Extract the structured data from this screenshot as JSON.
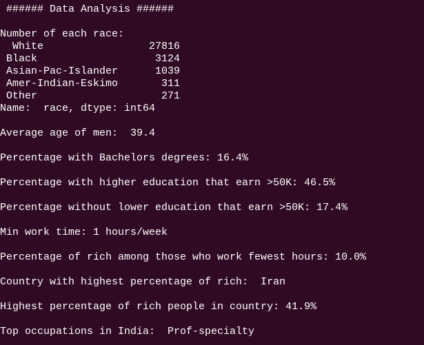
{
  "title": "###### Data Analysis ######",
  "race_heading": "Number of each race:",
  "races": [
    {
      "name": "White",
      "count": 27816
    },
    {
      "name": "Black",
      "count": 3124
    },
    {
      "name": "Asian-Pac-Islander",
      "count": 1039
    },
    {
      "name": "Amer-Indian-Eskimo",
      "count": 311
    },
    {
      "name": "Other",
      "count": 271
    }
  ],
  "dtype_line": "Name:  race, dtype: int64",
  "results": [
    "Average age of men:  39.4",
    "Percentage with Bachelors degrees: 16.4%",
    "Percentage with higher education that earn >50K: 46.5%",
    "Percentage without lower education that earn >50K: 17.4%",
    "Min work time: 1 hours/week",
    "Percentage of rich among those who work fewest hours: 10.0%",
    "Country with highest percentage of rich:  Iran",
    "Highest percentage of rich people in country: 41.9%",
    "Top occupations in India:  Prof-specialty"
  ]
}
